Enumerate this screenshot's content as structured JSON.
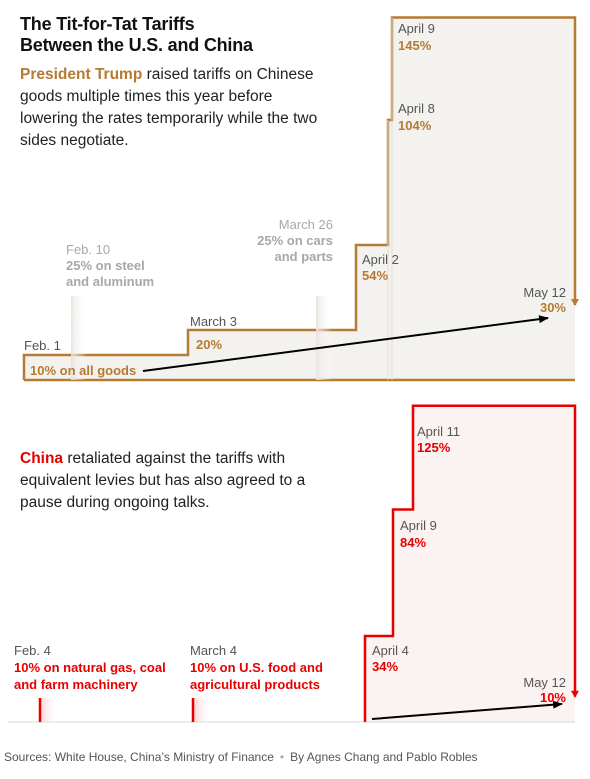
{
  "title": [
    "The Tit-for-Tat Tariffs",
    "Between the U.S. and China"
  ],
  "us_text": {
    "highlight": "President Trump",
    "rest": " raised tariffs on Chinese goods multiple times this year before lowering the rates temporarily while the two sides negotiate."
  },
  "cn_text": {
    "highlight": "China",
    "rest": " retaliated against the tariffs with equivalent levies but has also agreed to a pause during ongoing talks."
  },
  "source": {
    "text": "Sources: White House, China’s Ministry of Finance",
    "byline": "By Agnes Chang and Pablo Robles"
  },
  "colors": {
    "us": "#b57a33",
    "china": "#e60000",
    "faded": "#a8a8a8",
    "date": "#555555",
    "arrow": "#000000"
  },
  "chart_data": [
    {
      "type": "step",
      "name": "U.S. tariffs on Chinese goods",
      "y_unit": "%",
      "steps": [
        {
          "date": "Feb. 1",
          "value": 10,
          "label": "10% on all goods"
        },
        {
          "date": "March 3",
          "value": 20,
          "label": "20%"
        },
        {
          "date": "April 2",
          "value": 54,
          "label": "54%"
        },
        {
          "date": "April 8",
          "value": 104,
          "label": "104%"
        },
        {
          "date": "April 9",
          "value": 145,
          "label": "145%"
        },
        {
          "date": "May 12",
          "value": 30,
          "label": "30%"
        }
      ],
      "sector_tariffs": [
        {
          "date": "Feb. 10",
          "label": "25% on steel and aluminum"
        },
        {
          "date": "March 26",
          "label": "25% on cars and parts"
        }
      ]
    },
    {
      "type": "step",
      "name": "China retaliatory tariffs",
      "y_unit": "%",
      "steps": [
        {
          "date": "Feb. 4",
          "value": 10,
          "label": "10% on natural gas, coal and farm machinery"
        },
        {
          "date": "March 4",
          "value": 10,
          "label": "10% on U.S. food and agricultural products"
        },
        {
          "date": "April 4",
          "value": 34,
          "label": "34%"
        },
        {
          "date": "April 9",
          "value": 84,
          "label": "84%"
        },
        {
          "date": "April 11",
          "value": 125,
          "label": "125%"
        },
        {
          "date": "May 12",
          "value": 10,
          "label": "10%"
        }
      ]
    }
  ]
}
